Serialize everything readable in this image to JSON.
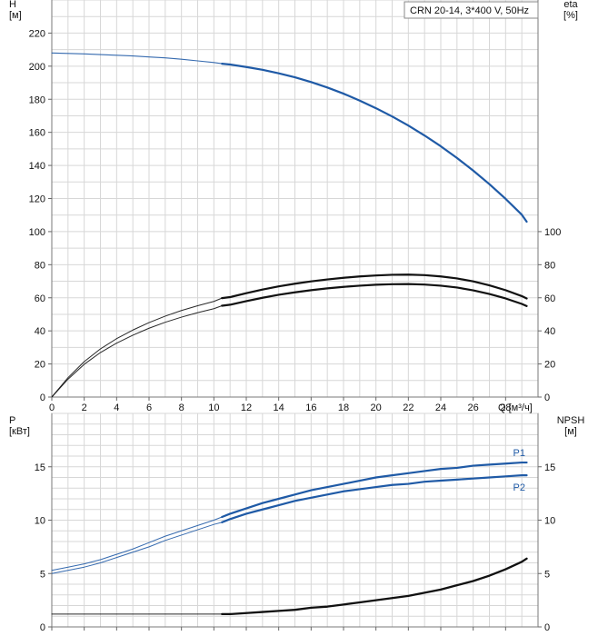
{
  "chart_data": [
    {
      "type": "line",
      "title": "CRN 20-14, 3*400 V, 50Hz",
      "xlabel": "Q [м³/ч]",
      "ylabel_left": "H\n[м]",
      "ylabel_right": "eta\n[%]",
      "xlim": [
        0,
        30
      ],
      "ylim_left": [
        0,
        240
      ],
      "ylim_right": [
        0,
        240
      ],
      "x_ticks": [
        0,
        2,
        4,
        6,
        8,
        10,
        12,
        14,
        16,
        18,
        20,
        22,
        24,
        26,
        28
      ],
      "y_ticks_left": [
        0,
        20,
        40,
        60,
        80,
        100,
        120,
        140,
        160,
        180,
        200,
        220
      ],
      "y_ticks_right": [
        0,
        20,
        40,
        60,
        80,
        100
      ],
      "grid": true,
      "series": [
        {
          "color": "#1f5aa6",
          "x": [
            0,
            1,
            2,
            3,
            4,
            5,
            6,
            7,
            8,
            9,
            10,
            10.5,
            11,
            12,
            13,
            14,
            15,
            16,
            17,
            18,
            19,
            20,
            21,
            22,
            23,
            24,
            25,
            26,
            27,
            28,
            29,
            29.3
          ],
          "y": [
            208.0,
            207.7,
            207.4,
            207.0,
            206.6,
            206.2,
            205.6,
            205.0,
            204.2,
            203.2,
            202.2,
            201.5,
            201.0,
            199.5,
            197.8,
            195.7,
            193.3,
            190.4,
            187.1,
            183.4,
            179.2,
            174.6,
            169.6,
            164.1,
            158.1,
            151.6,
            144.5,
            136.9,
            128.7,
            119.8,
            110.2,
            106.0
          ]
        },
        {
          "color": "#111111",
          "x": [
            0,
            1,
            2,
            3,
            4,
            5,
            6,
            7,
            8,
            9,
            10,
            10.5,
            11,
            12,
            13,
            14,
            15,
            16,
            17,
            18,
            19,
            20,
            21,
            22,
            23,
            24,
            25,
            26,
            27,
            28,
            29,
            29.3
          ],
          "y": [
            0,
            10.8,
            19.8,
            26.9,
            32.6,
            37.4,
            41.6,
            45.2,
            48.3,
            51.0,
            53.4,
            55.2,
            55.8,
            58.0,
            60.0,
            61.8,
            63.3,
            64.6,
            65.7,
            66.6,
            67.3,
            67.9,
            68.2,
            68.3,
            68.0,
            67.3,
            66.2,
            64.5,
            62.3,
            59.6,
            56.3,
            55.0
          ]
        },
        {
          "color": "#111111",
          "x": [
            0,
            1,
            2,
            3,
            4,
            5,
            6,
            7,
            8,
            9,
            10,
            10.5,
            11,
            12,
            13,
            14,
            15,
            16,
            17,
            18,
            19,
            20,
            21,
            22,
            23,
            24,
            25,
            26,
            27,
            28,
            29,
            29.3
          ],
          "y": [
            0,
            11.7,
            21.4,
            29.1,
            35.3,
            40.5,
            45.0,
            48.9,
            52.3,
            55.2,
            57.8,
            59.8,
            60.4,
            62.8,
            65.0,
            66.9,
            68.5,
            69.9,
            71.1,
            72.1,
            72.9,
            73.5,
            73.9,
            74.0,
            73.7,
            72.9,
            71.7,
            69.9,
            67.5,
            64.6,
            61.0,
            59.6
          ]
        }
      ]
    },
    {
      "type": "line",
      "title": "",
      "xlabel": "",
      "ylabel_left": "P\n[кВт]",
      "ylabel_right": "NPSH\n[м]",
      "xlim": [
        0,
        30
      ],
      "ylim_left": [
        0,
        20
      ],
      "ylim_right": [
        0,
        20
      ],
      "x_ticks": [
        0,
        2,
        4,
        6,
        8,
        10,
        12,
        14,
        16,
        18,
        20,
        22,
        24,
        26,
        28
      ],
      "y_ticks_left": [
        0,
        5,
        10,
        15
      ],
      "y_ticks_right": [
        0,
        5,
        10,
        15
      ],
      "grid": true,
      "series": [
        {
          "name": "P1",
          "color": "#1f5aa6",
          "x": [
            0,
            1,
            2,
            3,
            4,
            5,
            6,
            7,
            8,
            9,
            10,
            10.5,
            11,
            12,
            13,
            14,
            15,
            16,
            17,
            18,
            19,
            20,
            21,
            22,
            23,
            24,
            25,
            26,
            27,
            28,
            29,
            29.3
          ],
          "y": [
            5.3,
            5.6,
            5.9,
            6.3,
            6.8,
            7.3,
            7.9,
            8.5,
            9.0,
            9.5,
            10.0,
            10.3,
            10.6,
            11.1,
            11.6,
            12.0,
            12.4,
            12.8,
            13.1,
            13.4,
            13.7,
            14.0,
            14.2,
            14.4,
            14.6,
            14.8,
            14.9,
            15.1,
            15.2,
            15.3,
            15.4,
            15.4
          ]
        },
        {
          "name": "P2",
          "color": "#1f5aa6",
          "x": [
            0,
            1,
            2,
            3,
            4,
            5,
            6,
            7,
            8,
            9,
            10,
            10.5,
            11,
            12,
            13,
            14,
            15,
            16,
            17,
            18,
            19,
            20,
            21,
            22,
            23,
            24,
            25,
            26,
            27,
            28,
            29,
            29.3
          ],
          "y": [
            5.0,
            5.3,
            5.6,
            6.0,
            6.5,
            7.0,
            7.5,
            8.1,
            8.6,
            9.1,
            9.6,
            9.8,
            10.1,
            10.6,
            11.0,
            11.4,
            11.8,
            12.1,
            12.4,
            12.7,
            12.9,
            13.1,
            13.3,
            13.4,
            13.6,
            13.7,
            13.8,
            13.9,
            14.0,
            14.1,
            14.2,
            14.2
          ]
        },
        {
          "color": "#111111",
          "x": [
            0,
            2,
            4,
            6,
            8,
            10,
            10.5,
            11,
            12,
            13,
            14,
            15,
            16,
            17,
            18,
            19,
            20,
            21,
            22,
            23,
            24,
            25,
            26,
            27,
            28,
            29,
            29.3
          ],
          "y": [
            1.2,
            1.2,
            1.2,
            1.2,
            1.2,
            1.2,
            1.2,
            1.2,
            1.3,
            1.4,
            1.5,
            1.6,
            1.8,
            1.9,
            2.1,
            2.3,
            2.5,
            2.7,
            2.9,
            3.2,
            3.5,
            3.9,
            4.3,
            4.8,
            5.4,
            6.1,
            6.4
          ]
        }
      ]
    }
  ]
}
